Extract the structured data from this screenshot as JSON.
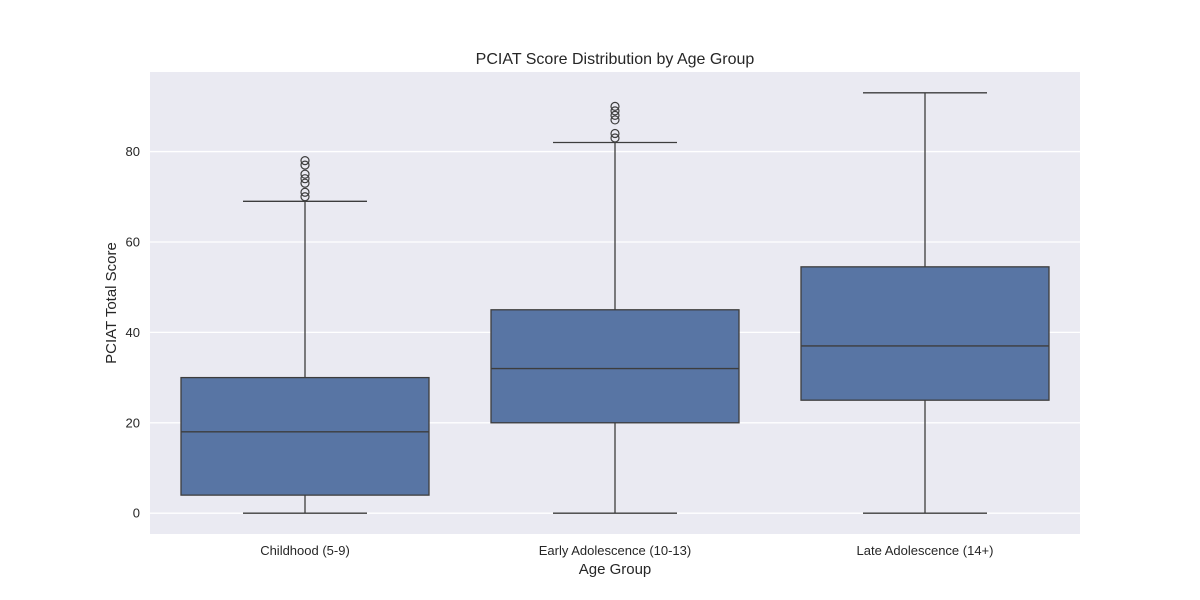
{
  "chart_data": {
    "type": "box",
    "title": "PCIAT Score Distribution by Age Group",
    "xlabel": "Age Group",
    "ylabel": "PCIAT Total Score",
    "ylim": [
      -4.6,
      97.6
    ],
    "yticks": [
      0,
      20,
      40,
      60,
      80
    ],
    "grid": true,
    "colors": {
      "box": "#5875a4",
      "line": "#3d3d3d",
      "plot_bg": "#eaeaf2",
      "grid": "#ffffff"
    },
    "categories": [
      "Childhood (5-9)",
      "Early Adolescence (10-13)",
      "Late Adolescence (14+)"
    ],
    "boxes": [
      {
        "whisker_low": 0,
        "q1": 4,
        "median": 18,
        "q3": 30,
        "whisker_high": 69,
        "outliers": [
          70,
          71,
          73,
          74,
          75,
          77,
          78
        ]
      },
      {
        "whisker_low": 0,
        "q1": 20,
        "median": 32,
        "q3": 45,
        "whisker_high": 82,
        "outliers": [
          83,
          84,
          87,
          88,
          89,
          90
        ]
      },
      {
        "whisker_low": 0,
        "q1": 25,
        "median": 37,
        "q3": 54.5,
        "whisker_high": 93,
        "outliers": []
      }
    ]
  }
}
